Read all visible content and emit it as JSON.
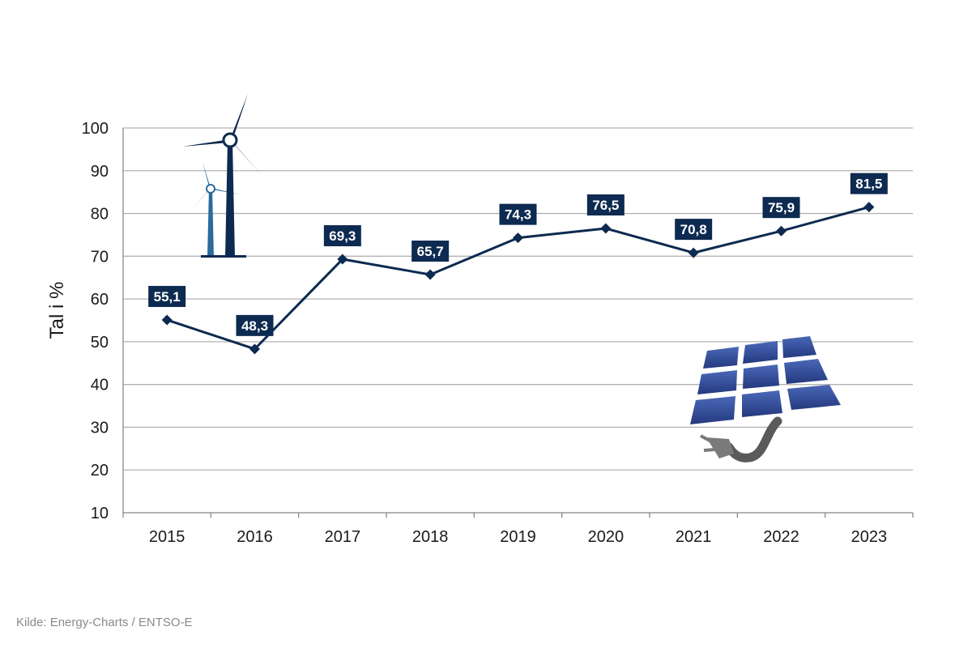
{
  "chart_data": {
    "type": "line",
    "categories": [
      "2015",
      "2016",
      "2017",
      "2018",
      "2019",
      "2020",
      "2021",
      "2022",
      "2023"
    ],
    "values": [
      55.1,
      48.3,
      69.3,
      65.7,
      74.3,
      76.5,
      70.8,
      75.9,
      81.5
    ],
    "data_labels": [
      "55,1",
      "48,3",
      "69,3",
      "65,7",
      "74,3",
      "76,5",
      "70,8",
      "75,9",
      "81,5"
    ],
    "ylabel": "Tal i %",
    "xlabel": "",
    "ylim": [
      10,
      100
    ],
    "yticks": [
      "10",
      "20",
      "30",
      "40",
      "50",
      "60",
      "70",
      "80",
      "90",
      "100"
    ],
    "grid": true,
    "marker": "diamond",
    "colors": {
      "line": "#0d2a50",
      "label_bg": "#0d2a50",
      "grid": "#b3b3b3"
    }
  },
  "source": "Kilde: Energy-Charts / ENTSO-E",
  "decorations": {
    "icons": [
      "wind-turbine-icon",
      "solar-panel-plug-icon"
    ]
  }
}
